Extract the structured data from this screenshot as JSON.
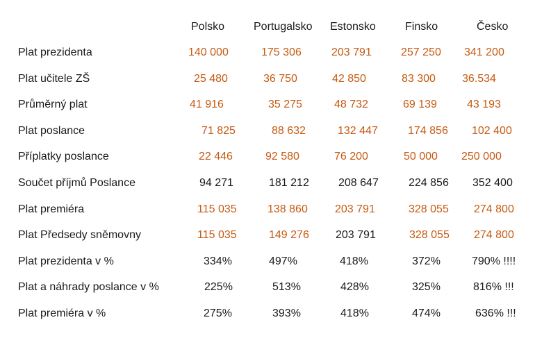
{
  "columns": [
    "Polsko",
    "Portugalsko",
    "Estonsko",
    "Finsko",
    "Česko"
  ],
  "colors": {
    "highlight": "#c55a11",
    "text": "#1a1a1a"
  },
  "rows": [
    {
      "label": "Plat prezidenta",
      "cells": [
        {
          "v": "140 000",
          "c": "orange"
        },
        {
          "v": "175 306",
          "c": "orange"
        },
        {
          "v": "203 791",
          "c": "orange"
        },
        {
          "v": "257 250",
          "c": "orange"
        },
        {
          "v": "341 200",
          "c": "orange"
        }
      ]
    },
    {
      "label": "Plat učitele ZŠ",
      "cells": [
        {
          "v": "25 480",
          "c": "orange"
        },
        {
          "v": "36 750",
          "c": "orange"
        },
        {
          "v": "42 850",
          "c": "orange"
        },
        {
          "v": "83 300",
          "c": "orange"
        },
        {
          "v": "36.534",
          "c": "orange"
        }
      ]
    },
    {
      "label": "Průměrný plat",
      "cells": [
        {
          "v": "41 916",
          "c": "orange"
        },
        {
          "v": "35 275",
          "c": "orange"
        },
        {
          "v": "48 732",
          "c": "orange"
        },
        {
          "v": "69 139",
          "c": "orange"
        },
        {
          "v": "43 193",
          "c": "orange"
        }
      ]
    },
    {
      "label": "Plat poslance",
      "cells": [
        {
          "v": "71 825",
          "c": "orange"
        },
        {
          "v": "88 632",
          "c": "orange"
        },
        {
          "v": "132 447",
          "c": "orange"
        },
        {
          "v": "174 856",
          "c": "orange"
        },
        {
          "v": "102 400",
          "c": "orange"
        }
      ]
    },
    {
      "label": "Příplatky poslance",
      "cells": [
        {
          "v": "22 446",
          "c": "orange"
        },
        {
          "v": "92 580",
          "c": "orange"
        },
        {
          "v": "76 200",
          "c": "orange"
        },
        {
          "v": "50 000",
          "c": "orange"
        },
        {
          "v": "250 000",
          "c": "orange"
        }
      ]
    },
    {
      "label": "Součet příjmů Poslance",
      "cells": [
        {
          "v": "94 271",
          "c": "black"
        },
        {
          "v": "181 212",
          "c": "black"
        },
        {
          "v": "208 647",
          "c": "black"
        },
        {
          "v": "224 856",
          "c": "black"
        },
        {
          "v": "352 400",
          "c": "black"
        }
      ]
    },
    {
      "label": "Plat premiéra",
      "cells": [
        {
          "v": "115 035",
          "c": "orange"
        },
        {
          "v": "138 860",
          "c": "orange"
        },
        {
          "v": "203 791",
          "c": "orange"
        },
        {
          "v": "328 055",
          "c": "orange"
        },
        {
          "v": "274 800",
          "c": "orange"
        }
      ]
    },
    {
      "label": "Plat Předsedy sněmovny",
      "cells": [
        {
          "v": "115 035",
          "c": "orange"
        },
        {
          "v": "149 276",
          "c": "orange"
        },
        {
          "v": "203 791",
          "c": "black"
        },
        {
          "v": "328 055",
          "c": "orange"
        },
        {
          "v": "274 800",
          "c": "orange"
        }
      ]
    },
    {
      "label": "Plat prezidenta v %",
      "cells": [
        {
          "v": "334%",
          "c": "black"
        },
        {
          "v": "497%",
          "c": "black"
        },
        {
          "v": "418%",
          "c": "black"
        },
        {
          "v": "372%",
          "c": "black"
        },
        {
          "v": "790% !!!!",
          "c": "black"
        }
      ]
    },
    {
      "label": "Plat a náhrady poslance v %",
      "cells": [
        {
          "v": "225%",
          "c": "black"
        },
        {
          "v": "513%",
          "c": "black"
        },
        {
          "v": "428%",
          "c": "black"
        },
        {
          "v": "325%",
          "c": "black"
        },
        {
          "v": "816% !!!",
          "c": "black"
        }
      ]
    },
    {
      "label": "Plat premiéra v %",
      "cells": [
        {
          "v": "275%",
          "c": "black"
        },
        {
          "v": "393%",
          "c": "black"
        },
        {
          "v": "418%",
          "c": "black"
        },
        {
          "v": "474%",
          "c": "black"
        },
        {
          "v": "636% !!!",
          "c": "black"
        }
      ]
    }
  ]
}
